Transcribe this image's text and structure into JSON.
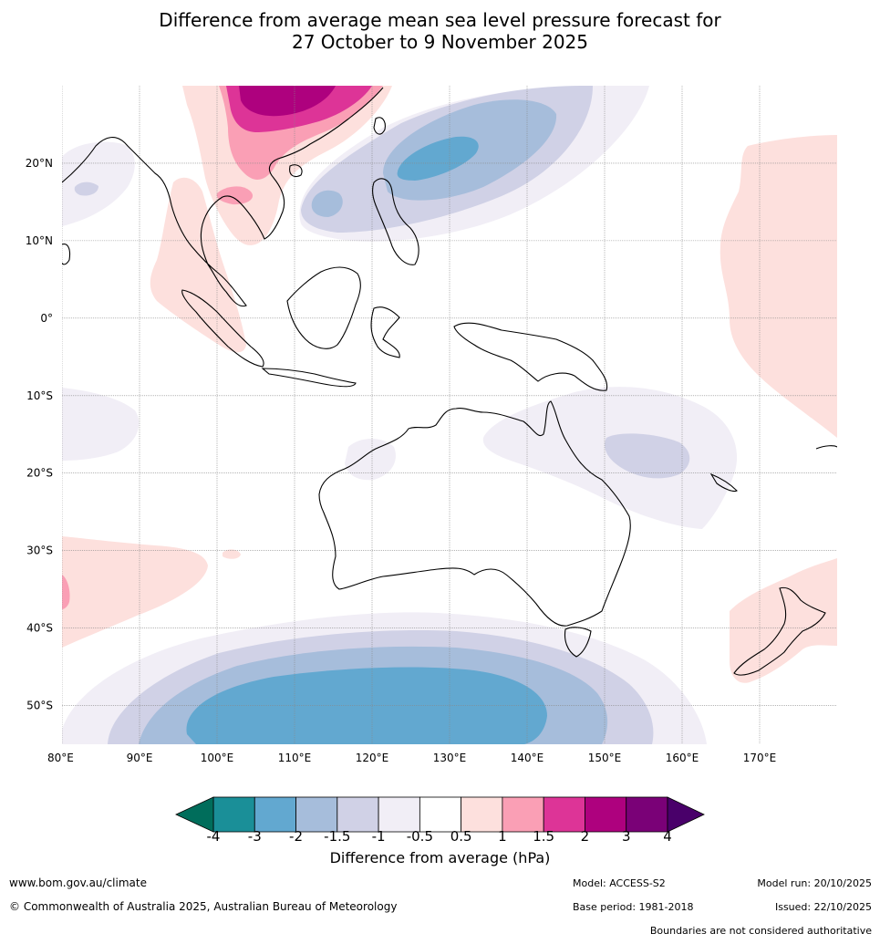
{
  "title": {
    "line1": "Difference from average mean sea level pressure forecast for",
    "line2": "27 October to 9 November 2025"
  },
  "map": {
    "lat_labels": [
      "20°N",
      "10°N",
      "0°",
      "10°S",
      "20°S",
      "30°S",
      "40°S",
      "50°S"
    ],
    "lat_values": [
      20,
      10,
      0,
      -10,
      -20,
      -30,
      -40,
      -50
    ],
    "lon_labels": [
      "80°E",
      "90°E",
      "100°E",
      "110°E",
      "120°E",
      "130°E",
      "140°E",
      "150°E",
      "160°E",
      "170°E"
    ],
    "lon_values": [
      80,
      90,
      100,
      110,
      120,
      130,
      140,
      150,
      160,
      170
    ],
    "lon_range": [
      80,
      180
    ],
    "lat_range": [
      -55,
      30
    ]
  },
  "colorbar": {
    "ticks": [
      "-4",
      "-3",
      "-2",
      "-1.5",
      "-1",
      "-0.5",
      "0.5",
      "1",
      "1.5",
      "2",
      "3",
      "4"
    ],
    "colors": [
      "#1a8f98",
      "#62a8d0",
      "#a6bddb",
      "#d0d1e6",
      "#f1eef6",
      "#ffffff",
      "#fde0dd",
      "#fa9fb5",
      "#dd3497",
      "#ae017e",
      "#7a0177"
    ],
    "under_color": "#006d5b",
    "over_color": "#49006a",
    "label": "Difference from average (hPa)"
  },
  "footer": {
    "website": "www.bom.gov.au/climate",
    "copyright": "© Commonwealth of Australia 2025, Australian Bureau of Meteorology",
    "model": "Model: ACCESS-S2",
    "base_period": "Base period: 1981-2018",
    "model_run": "Model run: 20/10/2025",
    "issued": "Issued: 22/10/2025",
    "disclaimer": "Boundaries are not considered authoritative"
  }
}
